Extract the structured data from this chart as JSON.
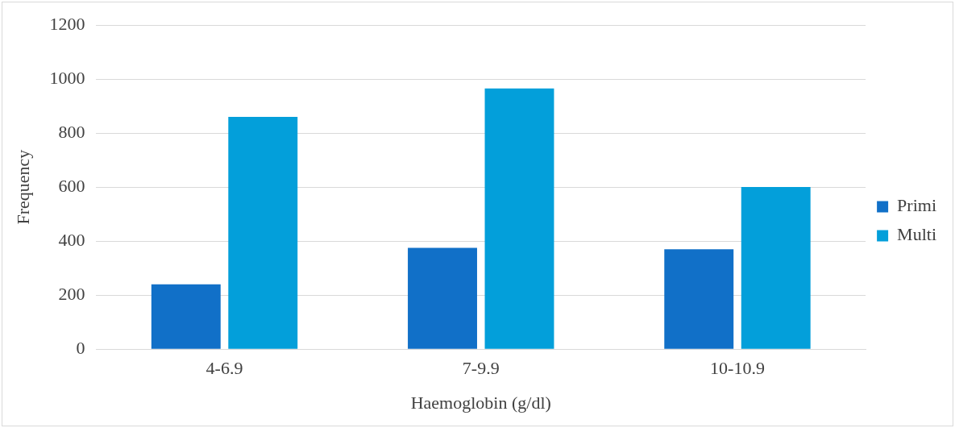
{
  "chart_data": {
    "type": "bar",
    "xlabel": "Haemoglobin (g/dl)",
    "ylabel": "Frequency",
    "categories": [
      "4-6.9",
      "7-9.9",
      "10-10.9"
    ],
    "series": [
      {
        "name": "Primi",
        "color": "#1170c8",
        "values": [
          240,
          375,
          370
        ]
      },
      {
        "name": "Multi",
        "color": "#039fda",
        "values": [
          860,
          965,
          600
        ]
      }
    ],
    "ylim": [
      0,
      1200
    ],
    "yticks": [
      0,
      200,
      400,
      600,
      800,
      1000,
      1200
    ],
    "grid": "y",
    "legend": "right"
  }
}
